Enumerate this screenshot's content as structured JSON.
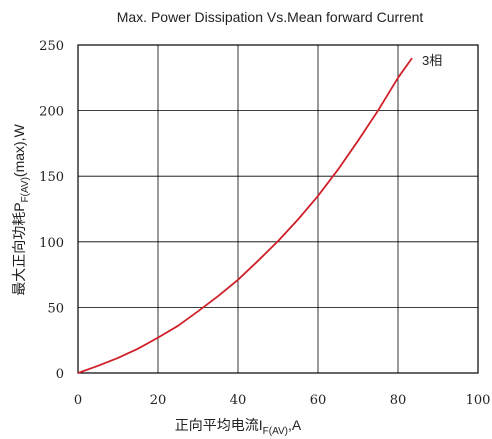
{
  "chart_data": {
    "type": "line",
    "title": "Max. Power Dissipation Vs.Mean forward Current",
    "xlabel_main": "正向平均电流I",
    "xlabel_sub": "F(AV)",
    "xlabel_tail": ",A",
    "ylabel_main": "最大正向功耗P",
    "ylabel_sub": "F(AV)",
    "ylabel_tail": "(max),W",
    "xlim": [
      0,
      100
    ],
    "ylim": [
      0,
      250
    ],
    "xticks": [
      0,
      20,
      40,
      60,
      80,
      100
    ],
    "yticks": [
      0,
      50,
      100,
      150,
      200,
      250
    ],
    "grid": true,
    "series": [
      {
        "name": "3相",
        "color": "#d0202a",
        "x": [
          0,
          5,
          10,
          15,
          20,
          25,
          30,
          35,
          40,
          45,
          50,
          55,
          60,
          65,
          70,
          75,
          80,
          83.5
        ],
        "y": [
          0,
          5.5,
          11.5,
          18.5,
          27,
          36,
          47,
          58.5,
          71,
          85.5,
          100.5,
          117,
          135,
          155,
          177,
          200,
          225,
          240
        ]
      }
    ]
  }
}
